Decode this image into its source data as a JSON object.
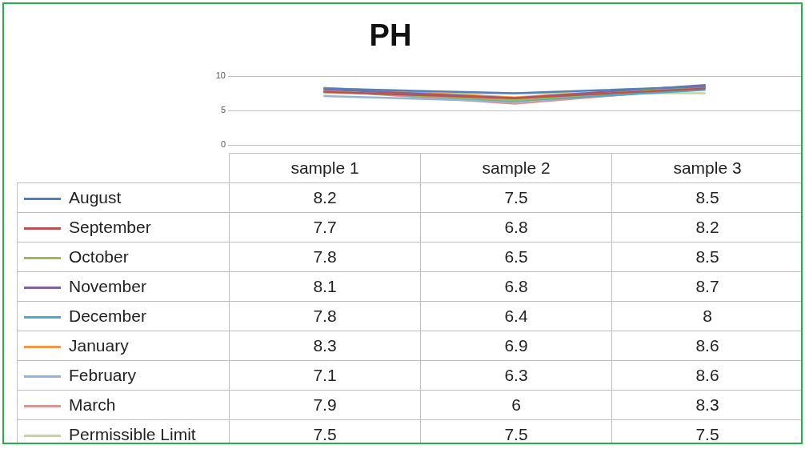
{
  "chart_data": {
    "type": "line",
    "title": "PH",
    "categories": [
      "sample 1",
      "sample 2",
      "sample 3"
    ],
    "series": [
      {
        "name": "August",
        "color": "#4f81bd",
        "values": [
          8.2,
          7.5,
          8.5
        ]
      },
      {
        "name": "September",
        "color": "#c0504d",
        "values": [
          7.7,
          6.8,
          8.2
        ]
      },
      {
        "name": "October",
        "color": "#9bbb59",
        "values": [
          7.8,
          6.5,
          8.5
        ]
      },
      {
        "name": "November",
        "color": "#8064a2",
        "values": [
          8.1,
          6.8,
          8.7
        ]
      },
      {
        "name": "December",
        "color": "#4bacc6",
        "values": [
          7.8,
          6.4,
          8
        ]
      },
      {
        "name": "January",
        "color": "#f79646",
        "values": [
          8.3,
          6.9,
          8.6
        ]
      },
      {
        "name": "February",
        "color": "#95b3d7",
        "values": [
          7.1,
          6.3,
          8.6
        ]
      },
      {
        "name": "March",
        "color": "#d99694",
        "values": [
          7.9,
          6,
          8.3
        ]
      },
      {
        "name": "Permissible Limit",
        "color": "#c3d69b",
        "values": [
          7.5,
          7.5,
          7.5
        ]
      }
    ],
    "ylim": [
      0,
      10
    ],
    "yticks": [
      0,
      5,
      10
    ],
    "grid": "y",
    "legend": "bottom",
    "data_labels": true,
    "marker": "none",
    "line_style": "solid"
  }
}
